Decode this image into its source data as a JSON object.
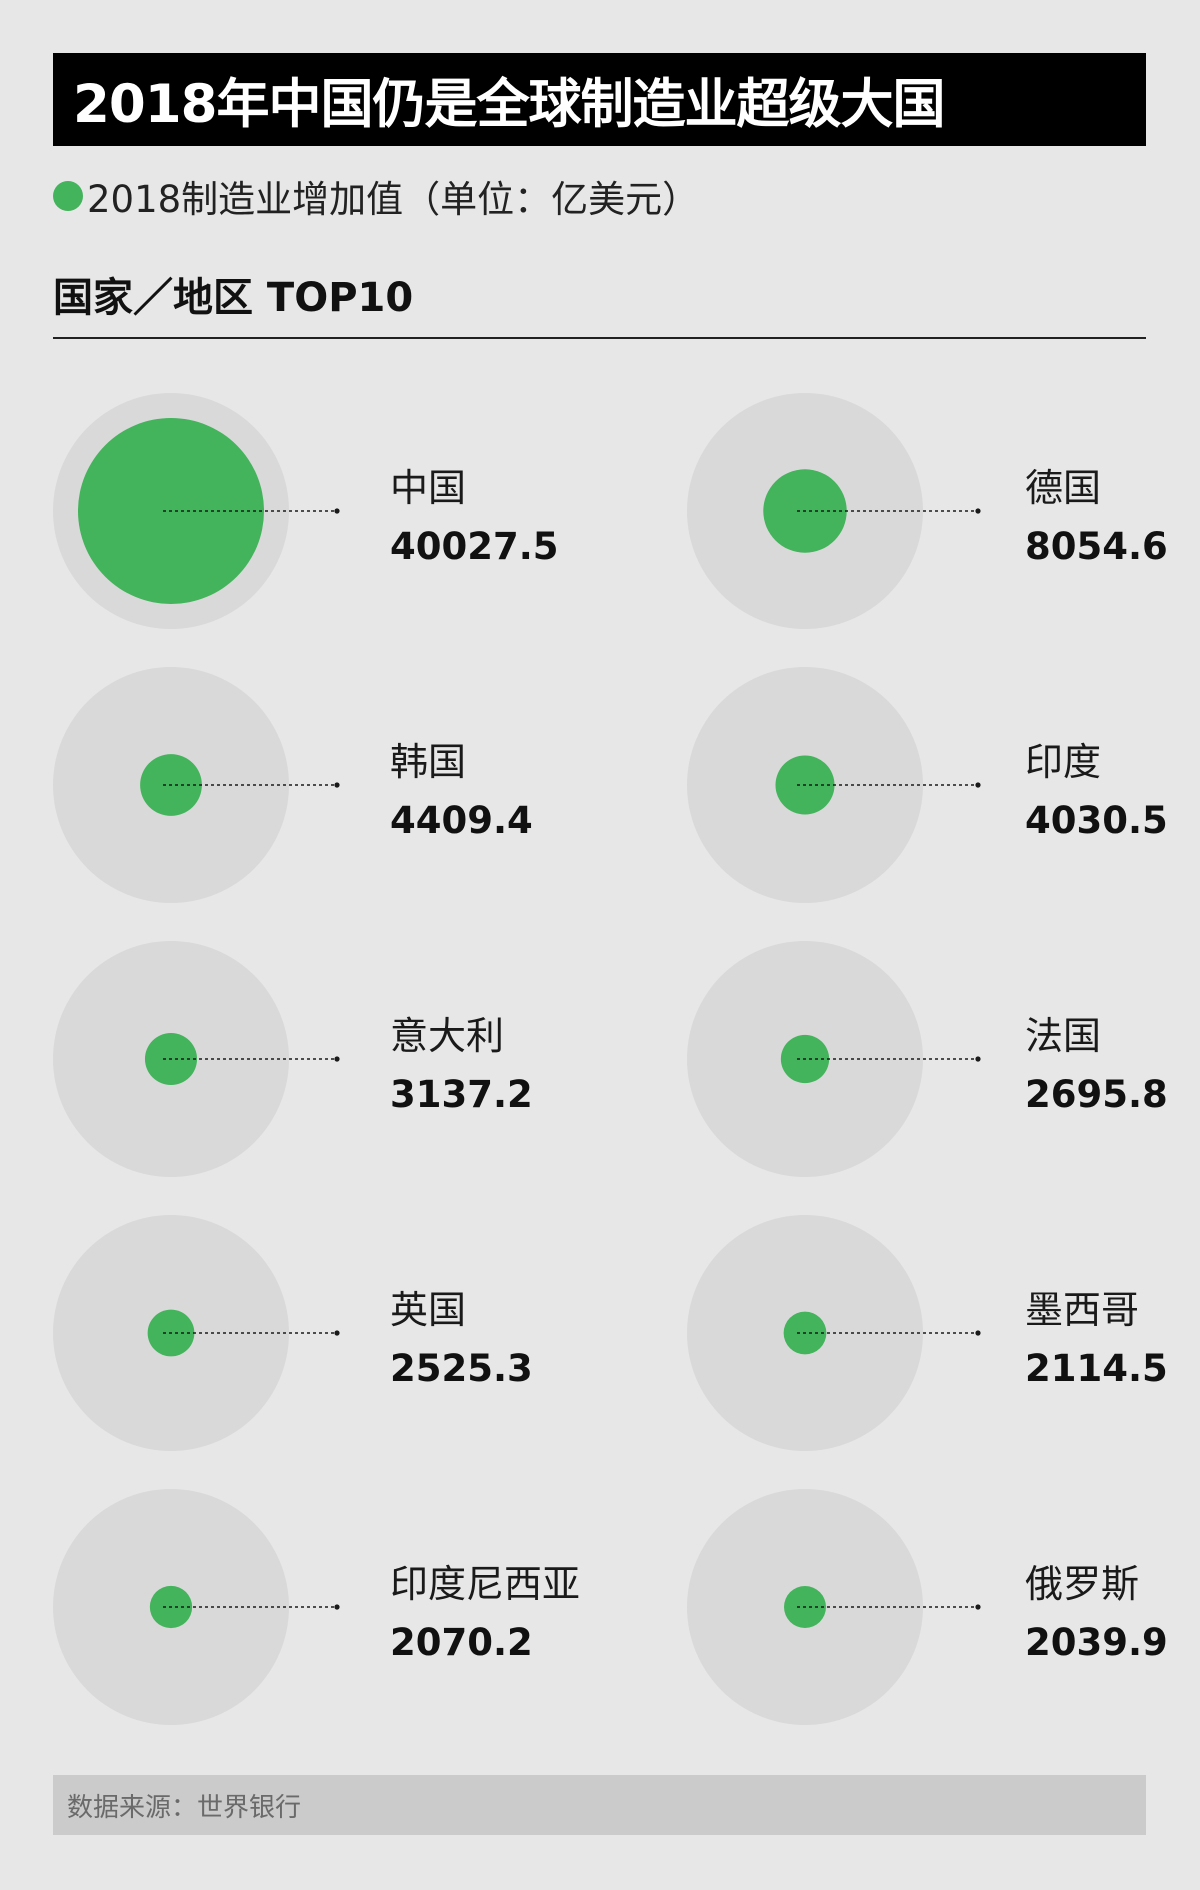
{
  "title": "2018年中国仍是全球制造业超级大国",
  "legend": "2018制造业增加值（单位：亿美元）",
  "section_heading": "国家／地区 TOP10",
  "source": "数据来源：世界银行",
  "colors": {
    "accent": "#43b35c",
    "background": "#e7e7e7",
    "ring": "#d9d9d9",
    "title_bar": "#000000",
    "source_bar": "#cbcbcb"
  },
  "chart_data": {
    "type": "bubble",
    "unit": "亿美元",
    "max_value": 40027.5,
    "items": [
      {
        "label": "中国",
        "value": "40027.5"
      },
      {
        "label": "德国",
        "value": "8054.6"
      },
      {
        "label": "韩国",
        "value": "4409.4"
      },
      {
        "label": "印度",
        "value": "4030.5"
      },
      {
        "label": "意大利",
        "value": "3137.2"
      },
      {
        "label": "法国",
        "value": "2695.8"
      },
      {
        "label": "英国",
        "value": "2525.3"
      },
      {
        "label": "墨西哥",
        "value": "2114.5"
      },
      {
        "label": "印度尼西亚",
        "value": "2070.2"
      },
      {
        "label": "俄罗斯",
        "value": "2039.9"
      }
    ]
  }
}
